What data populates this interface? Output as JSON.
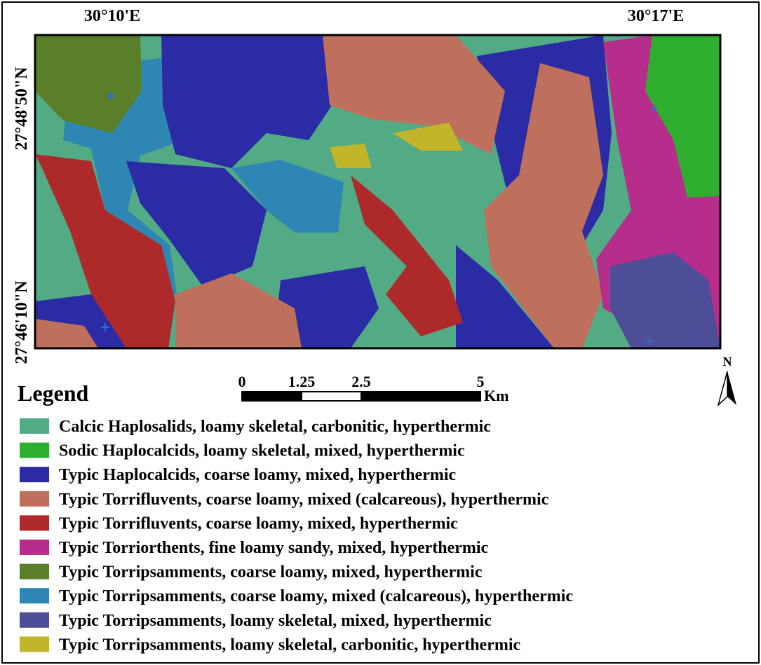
{
  "map": {
    "coordinates": {
      "top": [
        "30°10'E",
        "30°17'E"
      ],
      "left": [
        "27°48'50\"N",
        "27°46'10\"N"
      ]
    },
    "legend": {
      "title": "Legend",
      "items": [
        {
          "label": "Calcic Haplosalids, loamy skeletal, carbonitic, hyperthermic",
          "color": "#52ab85"
        },
        {
          "label": "Sodic Haplocalcids, loamy skeletal, mixed, hyperthermic",
          "color": "#2fae2f"
        },
        {
          "label": "Typic Haplocalcids, coarse loamy, mixed, hyperthermic",
          "color": "#2b2ba6"
        },
        {
          "label": "Typic Torrifluvents, coarse loamy, mixed (calcareous), hyperthermic",
          "color": "#bf705c"
        },
        {
          "label": "Typic Torrifluvents, coarse loamy, mixed, hyperthermic",
          "color": "#ae2a2a"
        },
        {
          "label": "Typic Torriorthents, fine loamy sandy, mixed, hyperthermic",
          "color": "#b72d8b"
        },
        {
          "label": "Typic Torripsamments, coarse loamy, mixed, hyperthermic",
          "color": "#5a7f2a"
        },
        {
          "label": "Typic Torripsamments, coarse loamy, mixed (calcareous), hyperthermic",
          "color": "#2e86b5"
        },
        {
          "label": "Typic Torripsamments, loamy skeletal, mixed, hyperthermic",
          "color": "#4e4d98"
        },
        {
          "label": "Typic Torripsamments, loamy skeletal, carbonitic, hyperthermic",
          "color": "#c2b52a"
        }
      ]
    },
    "scale_bar": {
      "ticks": [
        0,
        1.25,
        2.5,
        5
      ],
      "unit": "Km"
    },
    "north_arrow": "N"
  }
}
